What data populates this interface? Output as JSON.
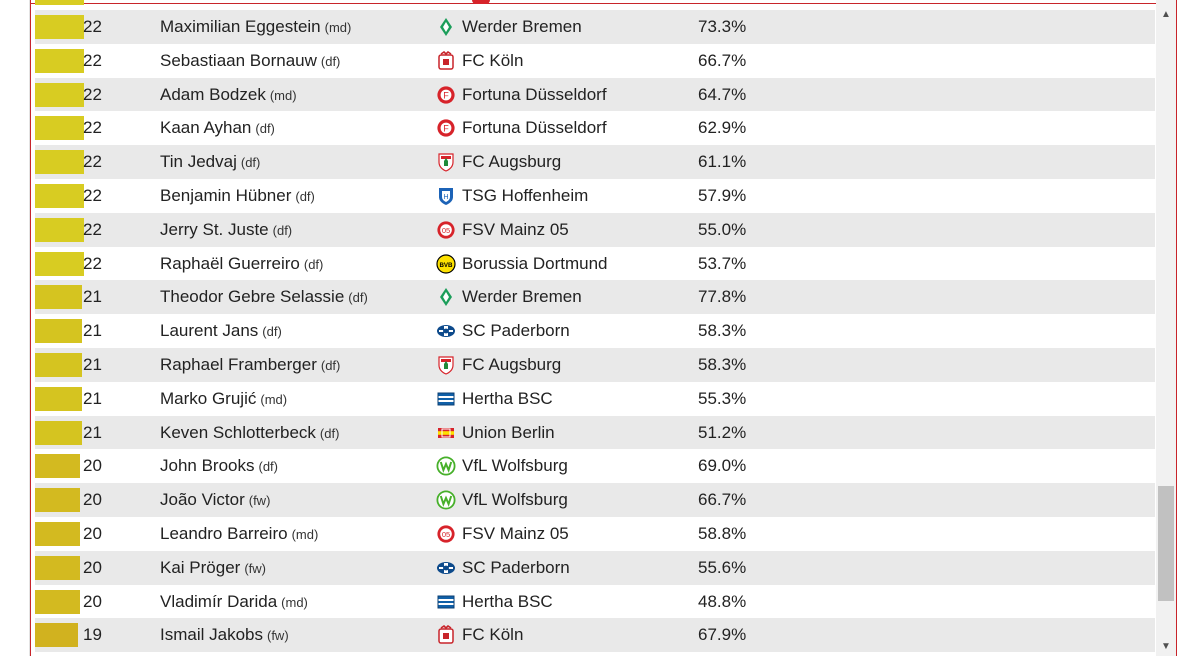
{
  "colors": {
    "accent_border": "#c8242a",
    "bar_22": "#d8cc22",
    "bar_21": "#d5c420",
    "bar_20": "#d3ba20",
    "bar_19": "#d1b21f",
    "row_alt": "#e9e9e9"
  },
  "scrollbar": {
    "up_icon": "▲",
    "down_icon": "▼"
  },
  "rows": [
    {
      "goals": "22",
      "player": "Maximilian Eggestein",
      "pos": "(md)",
      "club": "Werder Bremen",
      "pct": "73.3%",
      "logo": "werder-bremen-icon"
    },
    {
      "goals": "22",
      "player": "Sebastiaan Bornauw",
      "pos": "(df)",
      "club": "FC Köln",
      "pct": "66.7%",
      "logo": "fc-koln-icon"
    },
    {
      "goals": "22",
      "player": "Adam Bodzek",
      "pos": "(md)",
      "club": "Fortuna Düsseldorf",
      "pct": "64.7%",
      "logo": "fortuna-dusseldorf-icon"
    },
    {
      "goals": "22",
      "player": "Kaan Ayhan",
      "pos": "(df)",
      "club": "Fortuna Düsseldorf",
      "pct": "62.9%",
      "logo": "fortuna-dusseldorf-icon"
    },
    {
      "goals": "22",
      "player": "Tin Jedvaj",
      "pos": "(df)",
      "club": "FC Augsburg",
      "pct": "61.1%",
      "logo": "fc-augsburg-icon"
    },
    {
      "goals": "22",
      "player": "Benjamin Hübner",
      "pos": "(df)",
      "club": "TSG Hoffenheim",
      "pct": "57.9%",
      "logo": "tsg-hoffenheim-icon"
    },
    {
      "goals": "22",
      "player": "Jerry St. Juste",
      "pos": "(df)",
      "club": "FSV Mainz 05",
      "pct": "55.0%",
      "logo": "fsv-mainz-icon"
    },
    {
      "goals": "22",
      "player": "Raphaël Guerreiro",
      "pos": "(df)",
      "club": "Borussia Dortmund",
      "pct": "53.7%",
      "logo": "borussia-dortmund-icon"
    },
    {
      "goals": "21",
      "player": "Theodor Gebre Selassie",
      "pos": "(df)",
      "club": "Werder Bremen",
      "pct": "77.8%",
      "logo": "werder-bremen-icon"
    },
    {
      "goals": "21",
      "player": "Laurent Jans",
      "pos": "(df)",
      "club": "SC Paderborn",
      "pct": "58.3%",
      "logo": "sc-paderborn-icon"
    },
    {
      "goals": "21",
      "player": "Raphael Framberger",
      "pos": "(df)",
      "club": "FC Augsburg",
      "pct": "58.3%",
      "logo": "fc-augsburg-icon"
    },
    {
      "goals": "21",
      "player": "Marko Grujić",
      "pos": "(md)",
      "club": "Hertha BSC",
      "pct": "55.3%",
      "logo": "hertha-bsc-icon"
    },
    {
      "goals": "21",
      "player": "Keven Schlotterbeck",
      "pos": "(df)",
      "club": "Union Berlin",
      "pct": "51.2%",
      "logo": "union-berlin-icon"
    },
    {
      "goals": "20",
      "player": "John Brooks",
      "pos": "(df)",
      "club": "VfL Wolfsburg",
      "pct": "69.0%",
      "logo": "vfl-wolfsburg-icon"
    },
    {
      "goals": "20",
      "player": "João Victor",
      "pos": "(fw)",
      "club": "VfL Wolfsburg",
      "pct": "66.7%",
      "logo": "vfl-wolfsburg-icon"
    },
    {
      "goals": "20",
      "player": "Leandro Barreiro",
      "pos": "(md)",
      "club": "FSV Mainz 05",
      "pct": "58.8%",
      "logo": "fsv-mainz-icon"
    },
    {
      "goals": "20",
      "player": "Kai Pröger",
      "pos": "(fw)",
      "club": "SC Paderborn",
      "pct": "55.6%",
      "logo": "sc-paderborn-icon"
    },
    {
      "goals": "20",
      "player": "Vladimír Darida",
      "pos": "(md)",
      "club": "Hertha BSC",
      "pct": "48.8%",
      "logo": "hertha-bsc-icon"
    },
    {
      "goals": "19",
      "player": "Ismail Jakobs",
      "pos": "(fw)",
      "club": "FC Köln",
      "pct": "67.9%",
      "logo": "fc-koln-icon"
    }
  ]
}
